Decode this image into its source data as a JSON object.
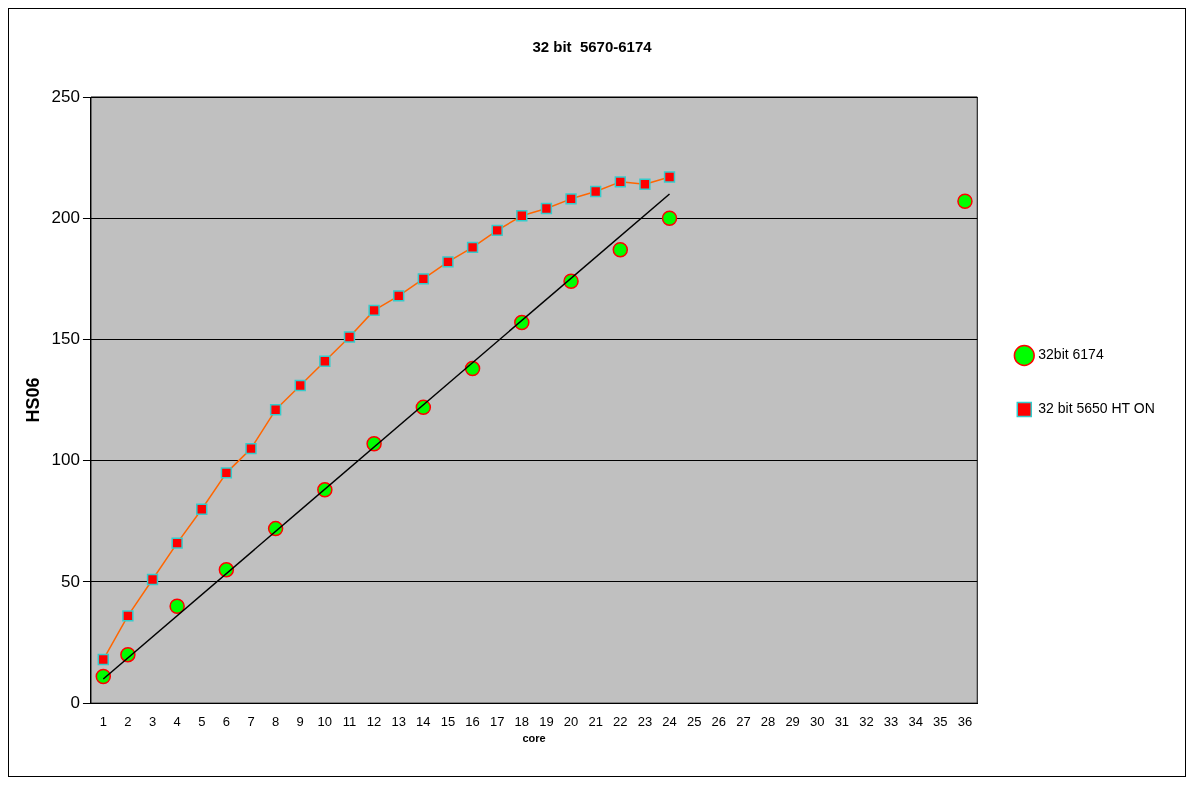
{
  "chart_data": {
    "type": "line",
    "title": "32 bit  5670-6174",
    "xlabel": "core",
    "ylabel": "HS06",
    "xlim": [
      0.5,
      36.5
    ],
    "xticks": [
      1,
      2,
      3,
      4,
      5,
      6,
      7,
      8,
      9,
      10,
      11,
      12,
      13,
      14,
      15,
      16,
      17,
      18,
      19,
      20,
      21,
      22,
      23,
      24,
      25,
      26,
      27,
      28,
      29,
      30,
      31,
      32,
      33,
      34,
      35,
      36
    ],
    "ylim": [
      0,
      250
    ],
    "yticks": [
      0,
      50,
      100,
      150,
      200,
      250
    ],
    "grid": "y",
    "legend": "right",
    "series": [
      {
        "name": "32 bit 5650 HT ON",
        "type": "line",
        "marker": "square",
        "color": "#ff6600",
        "x": [
          1,
          2,
          3,
          4,
          5,
          6,
          7,
          8,
          9,
          10,
          11,
          12,
          13,
          14,
          15,
          16,
          17,
          18,
          19,
          20,
          21,
          22,
          23,
          24
        ],
        "values": [
          18,
          36,
          51,
          66,
          80,
          95,
          105,
          121,
          131,
          141,
          151,
          162,
          168,
          175,
          182,
          188,
          195,
          201,
          204,
          208,
          211,
          215,
          214,
          217
        ]
      },
      {
        "name": "32bit 6174",
        "type": "scatter",
        "marker": "circle",
        "color": "#00ff00",
        "x": [
          1,
          2,
          4,
          6,
          8,
          10,
          12,
          14,
          16,
          18,
          20,
          22,
          24,
          36
        ],
        "values": [
          11,
          20,
          40,
          55,
          72,
          88,
          107,
          122,
          138,
          157,
          174,
          187,
          200,
          207
        ]
      },
      {
        "type": "line",
        "marker": "none",
        "color": "#000000",
        "x": [
          1,
          24
        ],
        "values": [
          10,
          210
        ]
      }
    ]
  }
}
